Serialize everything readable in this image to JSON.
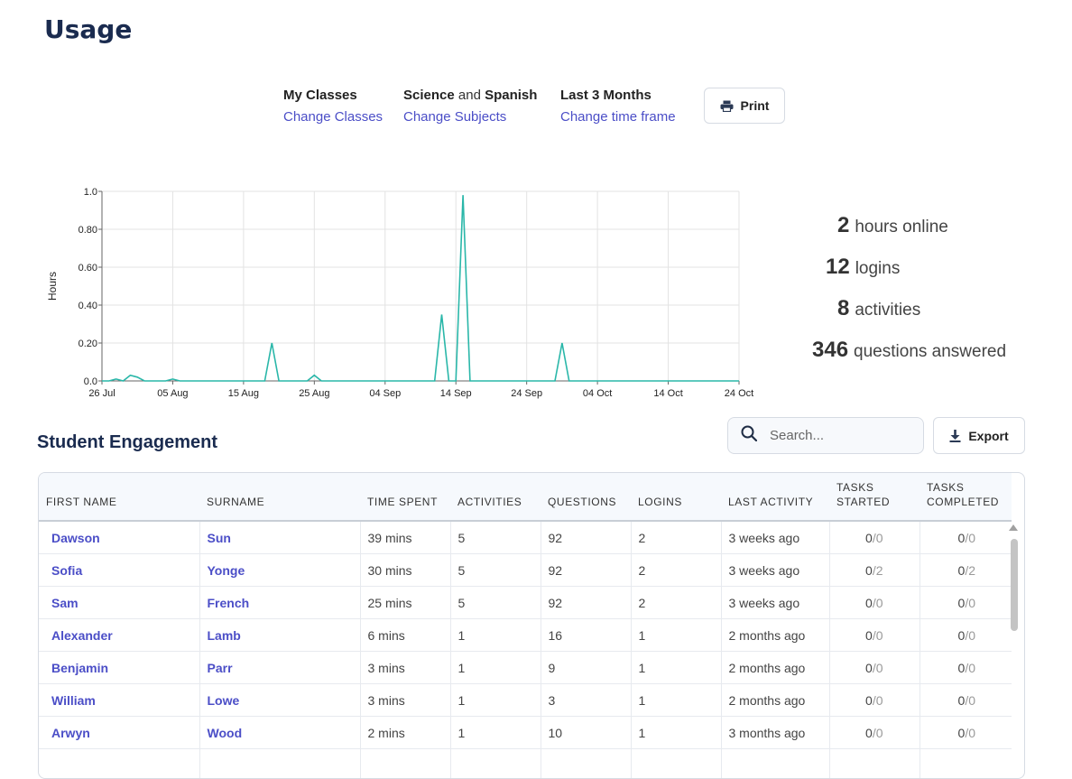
{
  "page": {
    "title": "Usage"
  },
  "filters": {
    "classes": {
      "title": "My Classes",
      "link": "Change Classes"
    },
    "subjects": {
      "first": "Science",
      "joiner": "and",
      "second": "Spanish",
      "link": "Change Subjects"
    },
    "timeframe": {
      "title": "Last 3 Months",
      "link": "Change time frame"
    },
    "print_label": "Print"
  },
  "chart_data": {
    "type": "line",
    "ylabel": "Hours",
    "xlabel": "",
    "ylim": [
      0,
      1.0
    ],
    "y_ticks": [
      "0.0",
      "0.20",
      "0.40",
      "0.60",
      "0.80",
      "1.0"
    ],
    "x_ticks": [
      "26 Jul",
      "05 Aug",
      "15 Aug",
      "25 Aug",
      "04 Sep",
      "14 Sep",
      "24 Sep",
      "04 Oct",
      "14 Oct",
      "24 Oct"
    ],
    "grid": true,
    "color": "#2ab7a9",
    "series": [
      {
        "x": [
          "2023-07-26",
          "2023-07-27",
          "2023-07-28",
          "2023-07-29",
          "2023-07-30",
          "2023-07-31",
          "2023-08-01",
          "2023-08-02",
          "2023-08-03",
          "2023-08-04",
          "2023-08-05",
          "2023-08-06",
          "2023-08-07",
          "2023-08-08",
          "2023-08-09",
          "2023-08-10",
          "2023-08-11",
          "2023-08-12",
          "2023-08-13",
          "2023-08-14",
          "2023-08-15",
          "2023-08-16",
          "2023-08-17",
          "2023-08-18",
          "2023-08-19",
          "2023-08-20",
          "2023-08-21",
          "2023-08-22",
          "2023-08-23",
          "2023-08-24",
          "2023-08-25",
          "2023-08-26",
          "2023-08-27",
          "2023-08-28",
          "2023-08-29",
          "2023-08-30",
          "2023-08-31",
          "2023-09-01",
          "2023-09-02",
          "2023-09-03",
          "2023-09-04",
          "2023-09-05",
          "2023-09-06",
          "2023-09-07",
          "2023-09-08",
          "2023-09-09",
          "2023-09-10",
          "2023-09-11",
          "2023-09-12",
          "2023-09-13",
          "2023-09-14",
          "2023-09-15",
          "2023-09-16",
          "2023-09-17",
          "2023-09-18",
          "2023-09-19",
          "2023-09-20",
          "2023-09-21",
          "2023-09-22",
          "2023-09-23",
          "2023-09-24",
          "2023-09-25",
          "2023-09-26",
          "2023-09-27",
          "2023-09-28",
          "2023-09-29",
          "2023-09-30",
          "2023-10-01",
          "2023-10-02",
          "2023-10-03",
          "2023-10-04",
          "2023-10-05",
          "2023-10-06",
          "2023-10-07",
          "2023-10-08",
          "2023-10-09",
          "2023-10-10",
          "2023-10-11",
          "2023-10-12",
          "2023-10-13",
          "2023-10-14",
          "2023-10-15",
          "2023-10-16",
          "2023-10-17",
          "2023-10-18",
          "2023-10-19",
          "2023-10-20",
          "2023-10-21",
          "2023-10-22",
          "2023-10-23",
          "2023-10-24"
        ],
        "y": [
          0,
          0,
          0.01,
          0,
          0.03,
          0.02,
          0,
          0,
          0,
          0,
          0.01,
          0,
          0,
          0,
          0,
          0,
          0,
          0,
          0,
          0,
          0,
          0,
          0,
          0,
          0.2,
          0,
          0,
          0,
          0,
          0,
          0.03,
          0,
          0,
          0,
          0,
          0,
          0,
          0,
          0,
          0,
          0,
          0,
          0,
          0,
          0,
          0,
          0,
          0,
          0.35,
          0,
          0,
          0.98,
          0,
          0,
          0,
          0,
          0,
          0,
          0,
          0,
          0,
          0,
          0,
          0,
          0,
          0.2,
          0,
          0,
          0,
          0,
          0,
          0,
          0,
          0,
          0,
          0,
          0,
          0,
          0,
          0,
          0,
          0,
          0,
          0,
          0,
          0,
          0,
          0,
          0,
          0,
          0
        ]
      }
    ]
  },
  "stats": [
    {
      "value": "2",
      "label": "hours online"
    },
    {
      "value": "12",
      "label": "logins"
    },
    {
      "value": "8",
      "label": "activities"
    },
    {
      "value": "346",
      "label": "questions answered"
    }
  ],
  "engagement": {
    "title": "Student Engagement",
    "search_placeholder": "Search...",
    "export_label": "Export",
    "columns": [
      "FIRST NAME",
      "SURNAME",
      "TIME SPENT",
      "ACTIVITIES",
      "QUESTIONS",
      "LOGINS",
      "LAST ACTIVITY",
      "TASKS STARTED",
      "TASKS COMPLETED"
    ],
    "rows": [
      {
        "first": "Dawson",
        "surname": "Sun",
        "time": "39 mins",
        "activities": "5",
        "questions": "92",
        "logins": "2",
        "last": "3 weeks ago",
        "started": "0",
        "started_total": "/0",
        "completed": "0",
        "completed_total": "/0"
      },
      {
        "first": "Sofia",
        "surname": "Yonge",
        "time": "30 mins",
        "activities": "5",
        "questions": "92",
        "logins": "2",
        "last": "3 weeks ago",
        "started": "0",
        "started_total": "/2",
        "completed": "0",
        "completed_total": "/2"
      },
      {
        "first": "Sam",
        "surname": "French",
        "time": "25 mins",
        "activities": "5",
        "questions": "92",
        "logins": "2",
        "last": "3 weeks ago",
        "started": "0",
        "started_total": "/0",
        "completed": "0",
        "completed_total": "/0"
      },
      {
        "first": "Alexander",
        "surname": "Lamb",
        "time": "6 mins",
        "activities": "1",
        "questions": "16",
        "logins": "1",
        "last": "2 months ago",
        "started": "0",
        "started_total": "/0",
        "completed": "0",
        "completed_total": "/0"
      },
      {
        "first": "Benjamin",
        "surname": "Parr",
        "time": "3 mins",
        "activities": "1",
        "questions": "9",
        "logins": "1",
        "last": "2 months ago",
        "started": "0",
        "started_total": "/0",
        "completed": "0",
        "completed_total": "/0"
      },
      {
        "first": "William",
        "surname": "Lowe",
        "time": "3 mins",
        "activities": "1",
        "questions": "3",
        "logins": "1",
        "last": "2 months ago",
        "started": "0",
        "started_total": "/0",
        "completed": "0",
        "completed_total": "/0"
      },
      {
        "first": "Arwyn",
        "surname": "Wood",
        "time": "2 mins",
        "activities": "1",
        "questions": "10",
        "logins": "1",
        "last": "3 months ago",
        "started": "0",
        "started_total": "/0",
        "completed": "0",
        "completed_total": "/0"
      },
      {
        "first": "",
        "surname": "",
        "time": "",
        "activities": "",
        "questions": "",
        "logins": "",
        "last": "",
        "started": "",
        "started_total": "",
        "completed": "",
        "completed_total": ""
      }
    ]
  },
  "icons": {
    "print": "printer-icon",
    "search": "search-icon",
    "export": "download-icon"
  }
}
